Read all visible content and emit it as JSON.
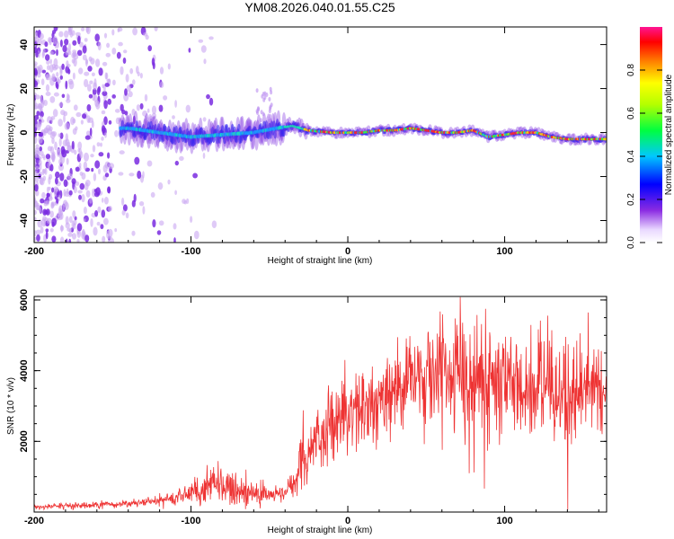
{
  "title": "YM08.2026.040.01.55.C25",
  "chart_data": [
    {
      "type": "heatmap",
      "name": "spectrogram",
      "xlabel": "Height of straight line (km)",
      "ylabel": "Frequency (Hz)",
      "xlim": [
        -200,
        165
      ],
      "ylim": [
        -50,
        48
      ],
      "xticks": [
        -200,
        -100,
        0,
        100
      ],
      "yticks": [
        -40,
        -20,
        0,
        20,
        40
      ],
      "ridge": {
        "x": [
          -140,
          -120,
          -100,
          -80,
          -60,
          -45,
          -35,
          -25,
          -10,
          0,
          10,
          20,
          30,
          40,
          50,
          60,
          70,
          80,
          90,
          100,
          110,
          120,
          130,
          140,
          150,
          160,
          165
        ],
        "freq": [
          2,
          0,
          -2,
          -1,
          0,
          2,
          3,
          1,
          0,
          0,
          0,
          1,
          1,
          2,
          1,
          0,
          0,
          1,
          -2,
          -1,
          0,
          0,
          -2,
          -3,
          -3,
          -3,
          -3
        ]
      },
      "colorbar": {
        "label": "Normalized spectral amplitude",
        "range": [
          0,
          1
        ],
        "ticks": [
          "0.0",
          "0.2",
          "0.4",
          "0.6",
          "0.8"
        ]
      }
    },
    {
      "type": "line",
      "name": "snr",
      "xlabel": "Height of straight line (km)",
      "ylabel": "SNR (10 * v/v)",
      "xlim": [
        -200,
        165
      ],
      "ylim": [
        0,
        6100
      ],
      "xticks": [
        -200,
        -100,
        0,
        100
      ],
      "yticks": [
        2000,
        4000,
        6000
      ],
      "color": "#ee3333",
      "envelope": {
        "x": [
          -200,
          -160,
          -120,
          -100,
          -90,
          -80,
          -70,
          -60,
          -50,
          -40,
          -35,
          -30,
          -25,
          -20,
          -10,
          0,
          10,
          20,
          30,
          40,
          50,
          60,
          70,
          80,
          90,
          100,
          110,
          120,
          130,
          140,
          150,
          160,
          165
        ],
        "base": [
          150,
          200,
          300,
          550,
          700,
          750,
          600,
          550,
          500,
          550,
          750,
          1300,
          1600,
          2300,
          2400,
          2600,
          2900,
          3400,
          3600,
          3700,
          3750,
          3800,
          3900,
          3700,
          3800,
          3650,
          3400,
          3500,
          3600,
          3200,
          3500,
          3400,
          3500
        ],
        "spread": [
          80,
          100,
          150,
          300,
          550,
          650,
          500,
          400,
          350,
          300,
          500,
          800,
          900,
          1000,
          1100,
          1200,
          1300,
          1500,
          1500,
          1600,
          1800,
          1900,
          1700,
          1800,
          1900,
          1700,
          1600,
          1600,
          1600,
          1700,
          1500,
          1400,
          1200
        ]
      }
    }
  ]
}
